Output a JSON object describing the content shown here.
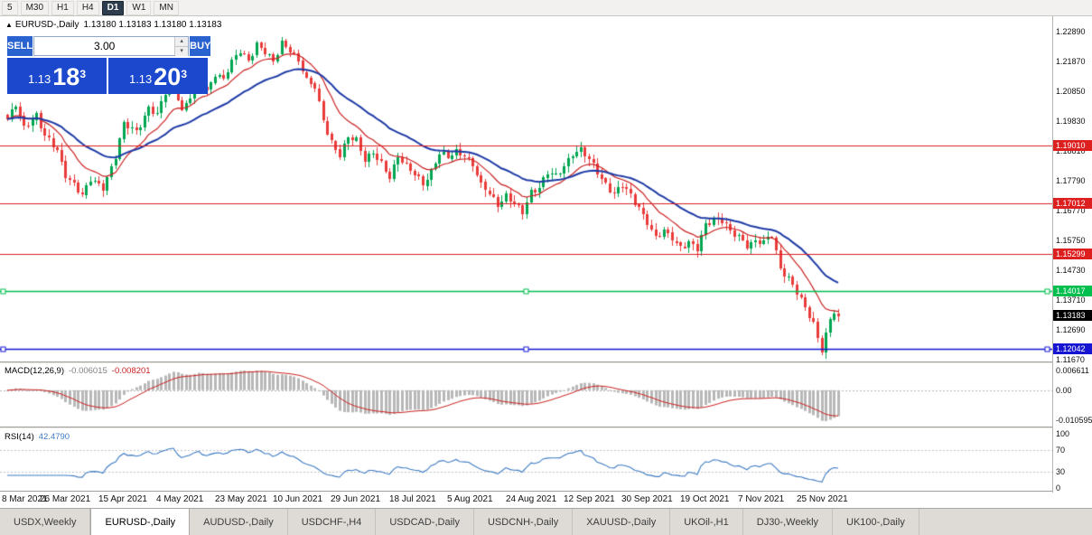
{
  "toolbar": {
    "timeframes": [
      {
        "label": "5",
        "active": false
      },
      {
        "label": "M30",
        "active": false
      },
      {
        "label": "H1",
        "active": false
      },
      {
        "label": "H4",
        "active": false
      },
      {
        "label": "D1",
        "active": true
      },
      {
        "label": "W1",
        "active": false
      },
      {
        "label": "MN",
        "active": false
      }
    ]
  },
  "chart": {
    "symbol_title": "EURUSD-,Daily",
    "quote_line": "1.13180 1.13183 1.13180 1.13183",
    "price_axis": {
      "labels": [
        "1.22890",
        "1.21870",
        "1.20850",
        "1.19830",
        "1.18810",
        "1.17790",
        "1.16770",
        "1.15750",
        "1.14730",
        "1.13710",
        "1.12690",
        "1.11670"
      ],
      "top_price": 1.2289,
      "step": 0.0102
    },
    "levels": [
      {
        "label": "1.19010",
        "price": 1.1901,
        "color": "#dd1f1f",
        "width": 1.2,
        "handles": false
      },
      {
        "label": "1.17012",
        "price": 1.17012,
        "color": "#dd1f1f",
        "width": 1.2,
        "handles": false
      },
      {
        "label": "1.15299",
        "price": 1.15299,
        "color": "#dd1f1f",
        "width": 1.2,
        "handles": false
      },
      {
        "label": "1.14017",
        "price": 1.14017,
        "color": "#00bf4e",
        "width": 1.6,
        "handles": true
      },
      {
        "label": "1.12042",
        "price": 1.12042,
        "color": "#1515d2",
        "width": 1.6,
        "handles": true
      }
    ],
    "current_price": {
      "label": "1.13183",
      "price": 1.13183,
      "color": "#000000"
    },
    "dates": [
      "8 Mar 2021",
      "26 Mar 2021",
      "15 Apr 2021",
      "4 May 2021",
      "23 May 2021",
      "10 Jun 2021",
      "29 Jun 2021",
      "18 Jul 2021",
      "5 Aug 2021",
      "24 Aug 2021",
      "12 Sep 2021",
      "30 Sep 2021",
      "19 Oct 2021",
      "7 Nov 2021",
      "25 Nov 2021"
    ]
  },
  "trade_panel": {
    "sell_label": "SELL",
    "buy_label": "BUY",
    "volume": "3.00",
    "sell_price": {
      "base": "1.13",
      "big": "18",
      "sup": "3"
    },
    "buy_price": {
      "base": "1.13",
      "big": "20",
      "sup": "3"
    }
  },
  "macd": {
    "title": "MACD(12,26,9)",
    "main_value": "-0.006015",
    "signal_value": "-0.008201",
    "axis_max": "0.006611",
    "axis_zero": "0.00",
    "axis_min": "-0.010595",
    "params": [
      12,
      26,
      9
    ]
  },
  "rsi": {
    "title": "RSI(14)",
    "value": "42.4790",
    "axis": [
      "100",
      "70",
      "30",
      "0"
    ],
    "levels": [
      70,
      30
    ],
    "period": 14
  },
  "tabs": [
    {
      "label": "USDX,Weekly",
      "active": false
    },
    {
      "label": "EURUSD-,Daily",
      "active": true
    },
    {
      "label": "AUDUSD-,Daily",
      "active": false
    },
    {
      "label": "USDCHF-,H4",
      "active": false
    },
    {
      "label": "USDCAD-,Daily",
      "active": false
    },
    {
      "label": "USDCNH-,Daily",
      "active": false
    },
    {
      "label": "XAUUSD-,Daily",
      "active": false
    },
    {
      "label": "UKOil-,H1",
      "active": false
    },
    {
      "label": "DJ30-,Weekly",
      "active": false
    },
    {
      "label": "UK100-,Daily",
      "active": false
    }
  ],
  "chart_data": {
    "type": "candlestick",
    "symbol": "EURUSD",
    "timeframe": "Daily",
    "num_candles": 201,
    "x_range": [
      "8 Mar 2021",
      "3 Dec 2021"
    ],
    "y_range": [
      1.1167,
      1.2289
    ],
    "anchors": [
      [
        0,
        1.199
      ],
      [
        2,
        1.2035
      ],
      [
        4,
        1.196
      ],
      [
        7,
        1.201
      ],
      [
        9,
        1.193
      ],
      [
        12,
        1.188
      ],
      [
        14,
        1.18
      ],
      [
        16,
        1.177
      ],
      [
        18,
        1.1725
      ],
      [
        20,
        1.178
      ],
      [
        23,
        1.176
      ],
      [
        26,
        1.186
      ],
      [
        28,
        1.197
      ],
      [
        31,
        1.195
      ],
      [
        34,
        1.203
      ],
      [
        36,
        1.2
      ],
      [
        38,
        1.208
      ],
      [
        40,
        1.212
      ],
      [
        42,
        1.202
      ],
      [
        44,
        1.2065
      ],
      [
        46,
        1.213
      ],
      [
        48,
        1.2085
      ],
      [
        50,
        1.215
      ],
      [
        52,
        1.2125
      ],
      [
        54,
        1.218
      ],
      [
        56,
        1.2225
      ],
      [
        58,
        1.2195
      ],
      [
        60,
        1.2245
      ],
      [
        62,
        1.2215
      ],
      [
        64,
        1.2185
      ],
      [
        66,
        1.2255
      ],
      [
        68,
        1.223
      ],
      [
        70,
        1.2185
      ],
      [
        72,
        1.212
      ],
      [
        74,
        1.2105
      ],
      [
        76,
        1.199
      ],
      [
        78,
        1.1905
      ],
      [
        80,
        1.186
      ],
      [
        82,
        1.193
      ],
      [
        84,
        1.1925
      ],
      [
        86,
        1.185
      ],
      [
        88,
        1.187
      ],
      [
        90,
        1.1835
      ],
      [
        92,
        1.1795
      ],
      [
        94,
        1.1865
      ],
      [
        96,
        1.1825
      ],
      [
        98,
        1.18
      ],
      [
        100,
        1.177
      ],
      [
        102,
        1.1815
      ],
      [
        104,
        1.187
      ],
      [
        106,
        1.1855
      ],
      [
        108,
        1.188
      ],
      [
        110,
        1.187
      ],
      [
        112,
        1.1835
      ],
      [
        114,
        1.176
      ],
      [
        116,
        1.1735
      ],
      [
        118,
        1.17
      ],
      [
        120,
        1.173
      ],
      [
        122,
        1.1695
      ],
      [
        124,
        1.167
      ],
      [
        126,
        1.1745
      ],
      [
        128,
        1.176
      ],
      [
        130,
        1.1805
      ],
      [
        132,
        1.179
      ],
      [
        134,
        1.183
      ],
      [
        136,
        1.1875
      ],
      [
        138,
        1.1885
      ],
      [
        140,
        1.1845
      ],
      [
        142,
        1.181
      ],
      [
        144,
        1.177
      ],
      [
        146,
        1.1735
      ],
      [
        148,
        1.176
      ],
      [
        150,
        1.1725
      ],
      [
        152,
        1.169
      ],
      [
        154,
        1.164
      ],
      [
        156,
        1.158
      ],
      [
        158,
        1.1605
      ],
      [
        160,
        1.1585
      ],
      [
        162,
        1.1555
      ],
      [
        164,
        1.1565
      ],
      [
        166,
        1.154
      ],
      [
        168,
        1.163
      ],
      [
        170,
        1.1655
      ],
      [
        172,
        1.1645
      ],
      [
        174,
        1.16
      ],
      [
        176,
        1.1585
      ],
      [
        178,
        1.156
      ],
      [
        180,
        1.1575
      ],
      [
        182,
        1.1565
      ],
      [
        184,
        1.159
      ],
      [
        186,
        1.148
      ],
      [
        188,
        1.145
      ],
      [
        190,
        1.1395
      ],
      [
        192,
        1.134
      ],
      [
        194,
        1.129
      ],
      [
        195,
        1.1245
      ],
      [
        196,
        1.1205
      ],
      [
        197,
        1.1255
      ],
      [
        198,
        1.1305
      ],
      [
        199,
        1.133
      ],
      [
        200,
        1.13183
      ]
    ],
    "ma": {
      "fast": {
        "period": 12,
        "color": "#cc2222"
      },
      "slow": {
        "period": 30,
        "color": "#1f3ba6"
      }
    },
    "candle_colors": {
      "up": "#00a651",
      "down": "#ea3b3b"
    },
    "macd_histogram_color": "#b8b8b8",
    "macd_signal_color": "#cc2222",
    "rsi_color": "#3f7cc4"
  }
}
